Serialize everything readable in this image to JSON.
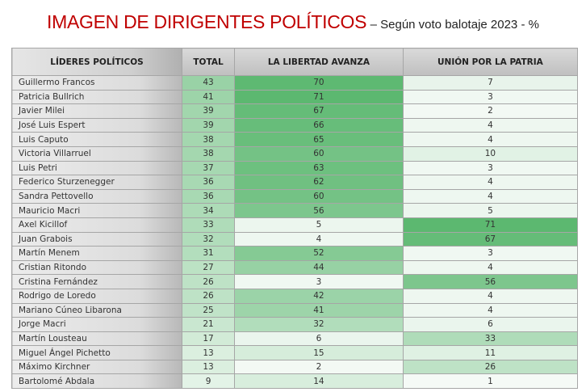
{
  "title": "IMAGEN DE DIRIGENTES POLÍTICOS",
  "subtitle": "– Según voto balotaje 2023 - %",
  "chart_data": {
    "type": "table",
    "title": "IMAGEN DE DIRIGENTES POLÍTICOS – Según voto balotaje 2023 - %",
    "columns": [
      "LÍDERES POLÍTICOS",
      "TOTAL",
      "LA LIBERTAD AVANZA",
      "UNIÓN POR LA PATRIA"
    ],
    "color_scale": {
      "low": "#f7fbf8",
      "high": "#5cb870"
    },
    "rows": [
      [
        "Guillermo Francos",
        43,
        70,
        7
      ],
      [
        "Patricia Bullrich",
        41,
        71,
        3
      ],
      [
        "Javier Milei",
        39,
        67,
        2
      ],
      [
        "José Luis Espert",
        39,
        66,
        4
      ],
      [
        "Luis Caputo",
        38,
        65,
        4
      ],
      [
        "Victoria Villarruel",
        38,
        60,
        10
      ],
      [
        "Luis Petri",
        37,
        63,
        3
      ],
      [
        "Federico Sturzenegger",
        36,
        62,
        4
      ],
      [
        "Sandra Pettovello",
        36,
        60,
        4
      ],
      [
        "Mauricio Macri",
        34,
        56,
        5
      ],
      [
        "Axel Kicillof",
        33,
        5,
        71
      ],
      [
        "Juan Grabois",
        32,
        4,
        67
      ],
      [
        "Martín Menem",
        31,
        52,
        3
      ],
      [
        "Cristian Ritondo",
        27,
        44,
        4
      ],
      [
        "Cristina Fernández",
        26,
        3,
        56
      ],
      [
        "Rodrigo de Loredo",
        26,
        42,
        4
      ],
      [
        "Mariano Cúneo Libarona",
        25,
        41,
        4
      ],
      [
        "Jorge Macri",
        21,
        32,
        6
      ],
      [
        "Martín Lousteau",
        17,
        6,
        33
      ],
      [
        "Miguel Ángel Pichetto",
        13,
        15,
        11
      ],
      [
        "Máximo Kirchner",
        13,
        2,
        26
      ],
      [
        "Bartolomé Abdala",
        9,
        14,
        1
      ]
    ]
  }
}
